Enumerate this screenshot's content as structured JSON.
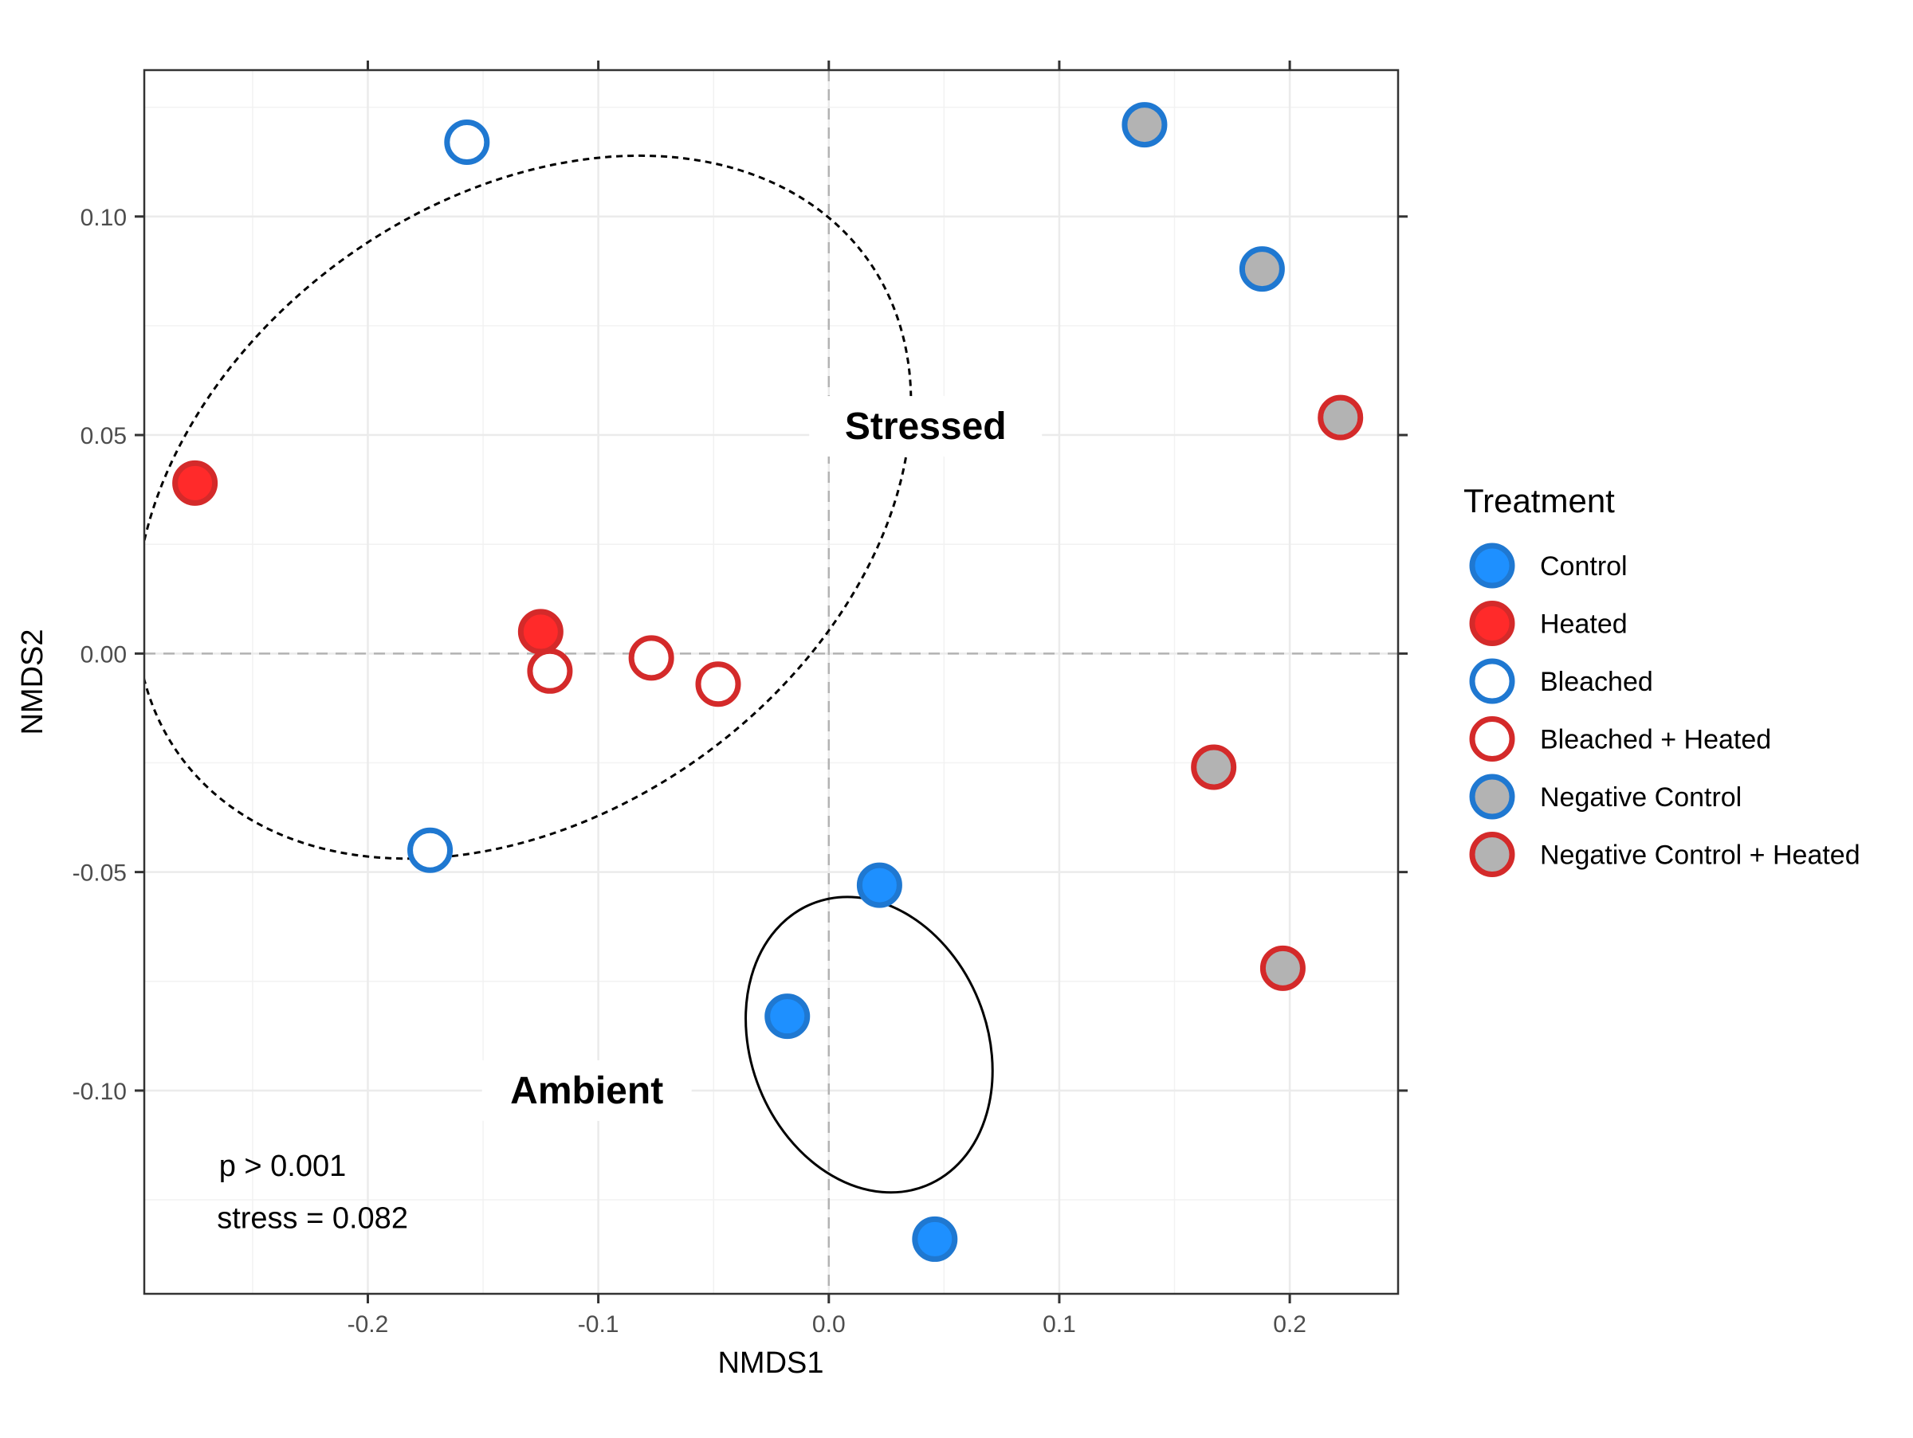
{
  "chart_data": {
    "type": "scatter",
    "xlabel": "NMDS1",
    "ylabel": "NMDS2",
    "xlim": [
      -0.297,
      0.247
    ],
    "ylim": [
      -0.1465,
      0.1335
    ],
    "x_ticks": [
      -0.2,
      -0.1,
      0.0,
      0.1,
      0.2
    ],
    "x_tick_labels": [
      "-0.2",
      "-0.1",
      "0.0",
      "0.1",
      "0.2"
    ],
    "y_ticks": [
      -0.1,
      -0.05,
      0.0,
      0.05,
      0.1
    ],
    "y_tick_labels": [
      "-0.10",
      "-0.05",
      "0.00",
      "0.05",
      "0.10"
    ],
    "grid": true,
    "reference_lines": {
      "x": 0,
      "y": 0,
      "style": "dashed"
    },
    "legend": {
      "title": "Treatment",
      "placement": "right"
    },
    "series": [
      {
        "name": "Control",
        "fill": "#1e90ff",
        "stroke": "#1f78d1",
        "points": [
          [
            0.022,
            -0.053
          ],
          [
            -0.018,
            -0.083
          ],
          [
            0.046,
            -0.134
          ]
        ]
      },
      {
        "name": "Heated",
        "fill": "#ff2a2a",
        "stroke": "#d42a2a",
        "points": [
          [
            -0.275,
            0.039
          ],
          [
            -0.125,
            0.005
          ]
        ]
      },
      {
        "name": "Bleached",
        "fill": "#ffffff",
        "stroke": "#1f78d1",
        "points": [
          [
            -0.157,
            0.117
          ],
          [
            -0.173,
            -0.045
          ]
        ]
      },
      {
        "name": "Bleached + Heated",
        "fill": "#ffffff",
        "stroke": "#d42a2a",
        "points": [
          [
            -0.121,
            -0.004
          ],
          [
            -0.077,
            -0.001
          ],
          [
            -0.048,
            -0.007
          ]
        ]
      },
      {
        "name": "Negative Control",
        "fill": "#b3b3b3",
        "stroke": "#1f78d1",
        "points": [
          [
            0.137,
            0.121
          ],
          [
            0.188,
            0.088
          ]
        ]
      },
      {
        "name": "Negative Control + Heated",
        "fill": "#b3b3b3",
        "stroke": "#d42a2a",
        "points": [
          [
            0.222,
            0.054
          ],
          [
            0.167,
            -0.026
          ],
          [
            0.197,
            -0.072
          ]
        ]
      }
    ],
    "ellipses": [
      {
        "name": "Stressed",
        "style": "dashed",
        "cx": -0.1325,
        "cy": 0.0335,
        "rx": 0.133,
        "ry": 0.097,
        "rotation_deg": 54
      },
      {
        "name": "Ambient",
        "style": "solid",
        "cx": 0.0175,
        "cy": -0.0895,
        "rx": 0.066,
        "ry": 0.027,
        "rotation_deg": 68
      }
    ],
    "group_labels": [
      {
        "text": "Stressed",
        "x": 0.042,
        "y": 0.052
      },
      {
        "text": "Ambient",
        "x": -0.105,
        "y": -0.1
      }
    ],
    "annotations": [
      {
        "text": "p > 0.001",
        "x": -0.237,
        "y": -0.1195
      },
      {
        "text": "stress = 0.082",
        "x": -0.224,
        "y": -0.1315
      }
    ]
  }
}
